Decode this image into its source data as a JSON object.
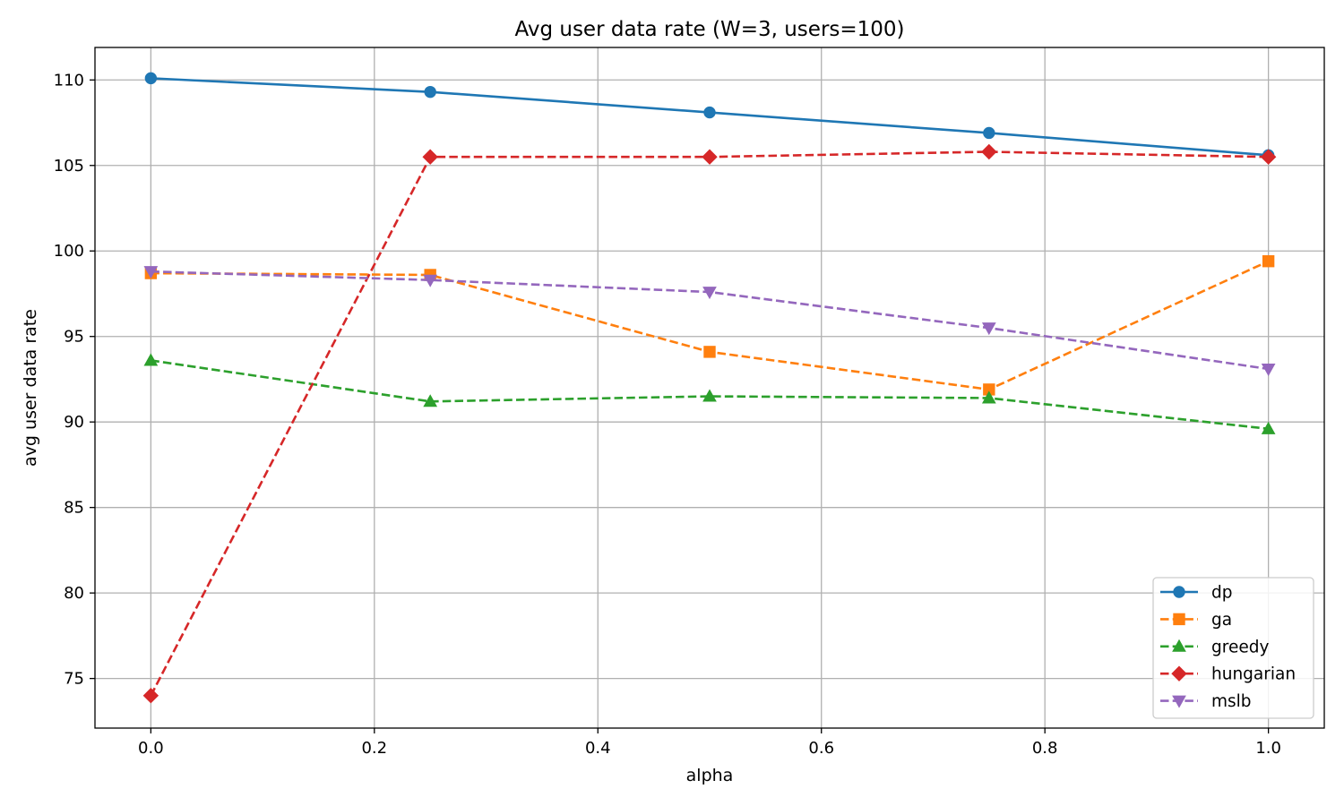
{
  "chart_data": {
    "type": "line",
    "title": "Avg user data rate (W=3, users=100)",
    "xlabel": "alpha",
    "ylabel": "avg user data rate",
    "x": [
      0.0,
      0.25,
      0.5,
      0.75,
      1.0
    ],
    "xlim": [
      -0.05,
      1.05
    ],
    "ylim": [
      72.1,
      111.9
    ],
    "xticks": [
      "0.0",
      "0.2",
      "0.4",
      "0.6",
      "0.8",
      "1.0"
    ],
    "xtick_values": [
      0.0,
      0.2,
      0.4,
      0.6,
      0.8,
      1.0
    ],
    "yticks": [
      "75",
      "80",
      "85",
      "90",
      "95",
      "100",
      "105",
      "110"
    ],
    "ytick_values": [
      75,
      80,
      85,
      90,
      95,
      100,
      105,
      110
    ],
    "grid": true,
    "legend_position": "lower-right",
    "series": [
      {
        "name": "dp",
        "values": [
          110.1,
          109.3,
          108.1,
          106.9,
          105.6
        ],
        "color": "#1f77b4",
        "linestyle": "solid",
        "marker": "circle"
      },
      {
        "name": "ga",
        "values": [
          98.7,
          98.6,
          94.1,
          91.9,
          99.4
        ],
        "color": "#ff7f0e",
        "linestyle": "dashed",
        "marker": "square"
      },
      {
        "name": "greedy",
        "values": [
          93.6,
          91.2,
          91.5,
          91.4,
          89.6
        ],
        "color": "#2ca02c",
        "linestyle": "dashed",
        "marker": "triangle-up"
      },
      {
        "name": "hungarian",
        "values": [
          74.0,
          105.5,
          105.5,
          105.8,
          105.5
        ],
        "color": "#d62728",
        "linestyle": "dashed",
        "marker": "diamond"
      },
      {
        "name": "mslb",
        "values": [
          98.8,
          98.3,
          97.6,
          95.5,
          93.1
        ],
        "color": "#9467bd",
        "linestyle": "dashed",
        "marker": "triangle-down"
      }
    ]
  }
}
